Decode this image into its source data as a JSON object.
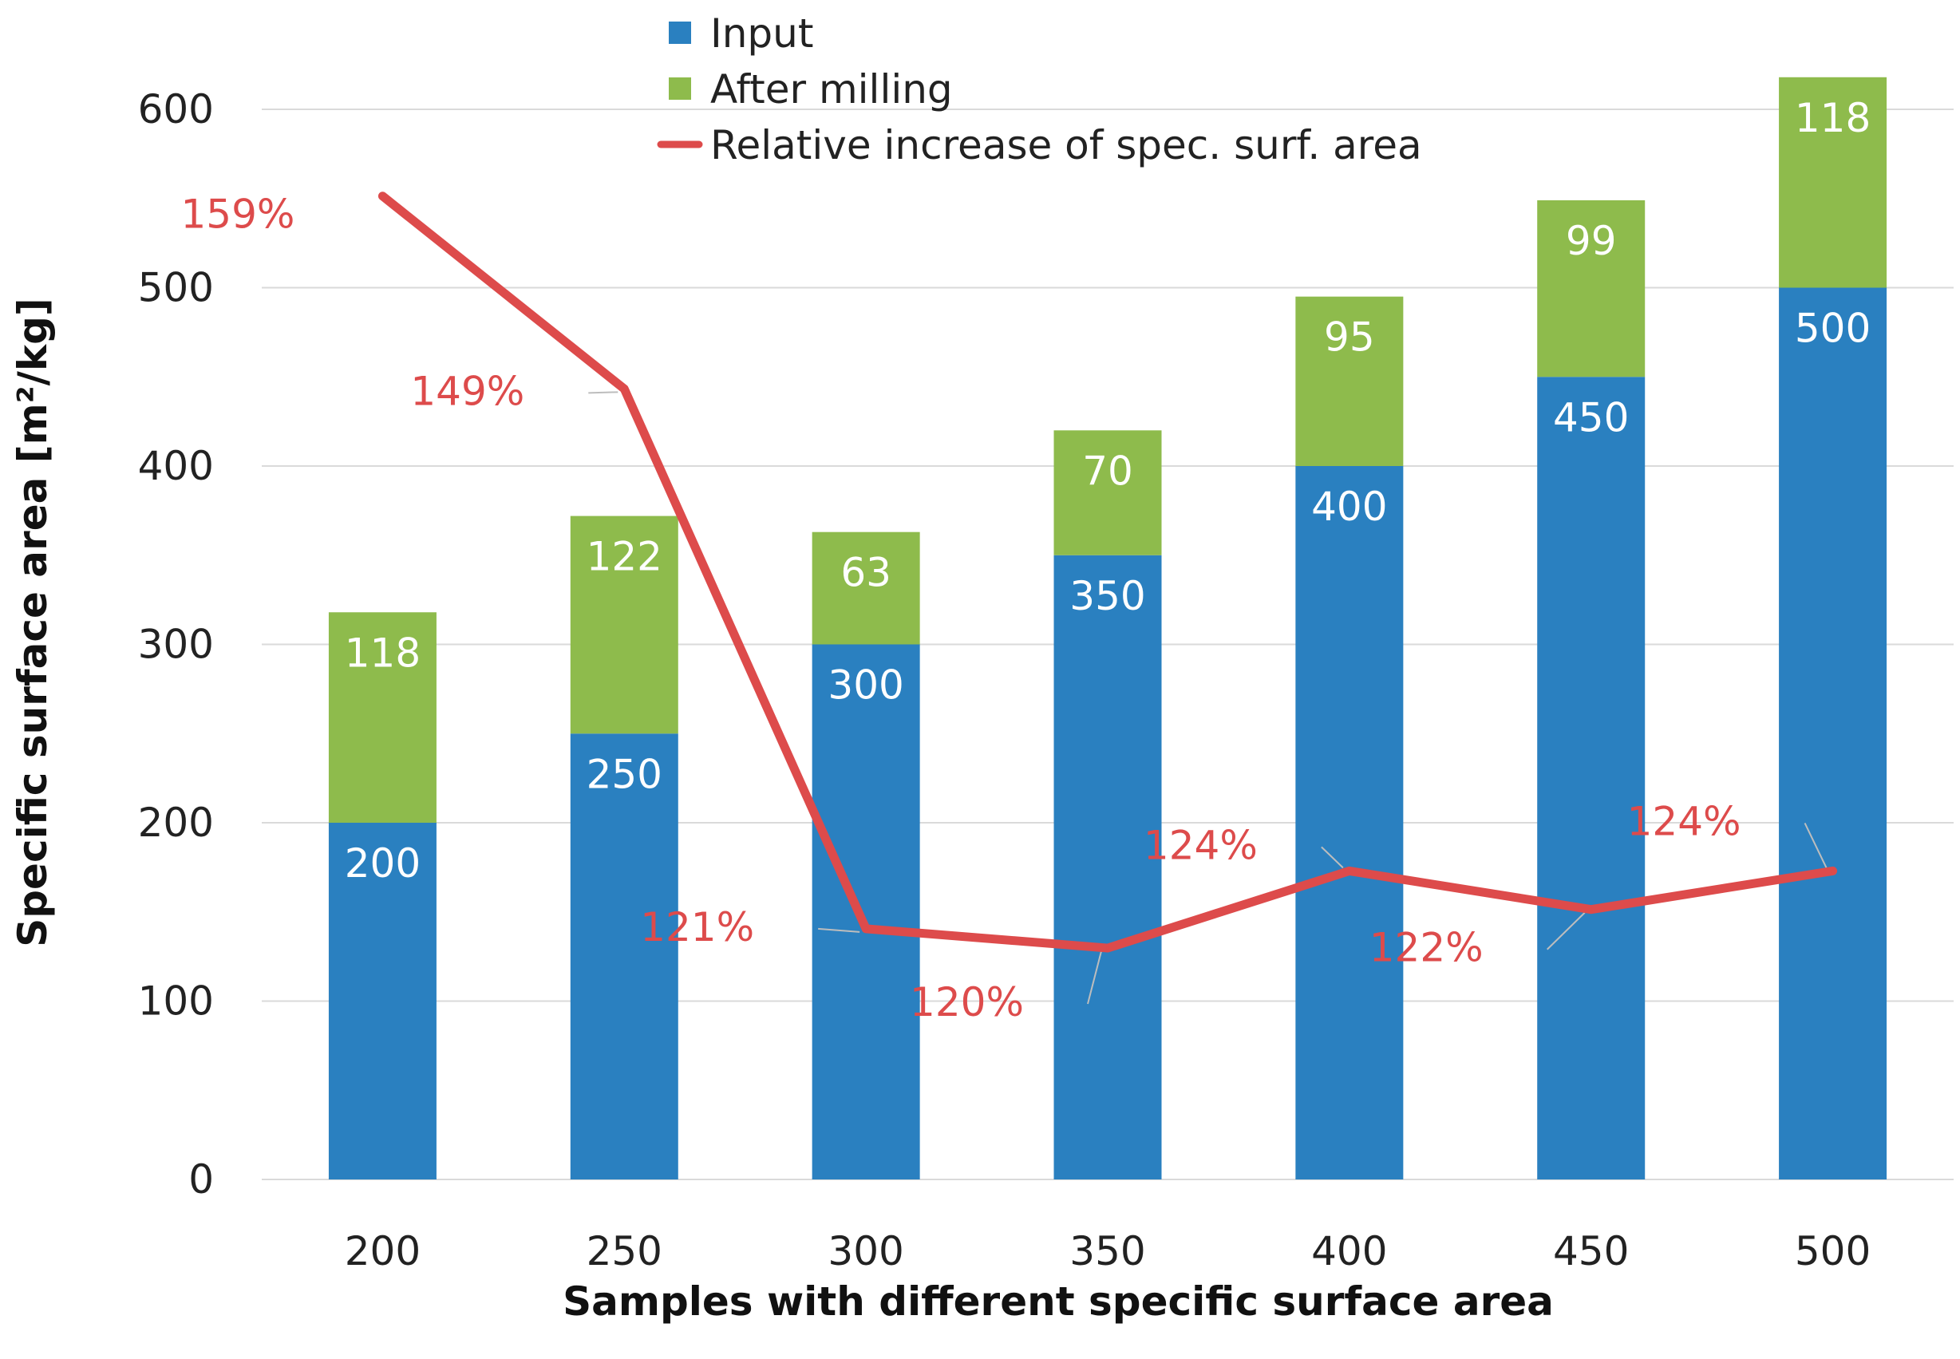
{
  "chart_data": {
    "type": "bar",
    "stacked": true,
    "title": "",
    "xlabel": "Samples with different specific surface area",
    "ylabel": "Specific surface area [m²/kg]",
    "ylim": [
      0,
      600
    ],
    "yticks": [
      0,
      100,
      200,
      300,
      400,
      500,
      600
    ],
    "grid": true,
    "legend_position": "top-center",
    "categories": [
      "200",
      "250",
      "300",
      "350",
      "400",
      "450",
      "500"
    ],
    "series": [
      {
        "name": "Input",
        "kind": "bar",
        "color": "#2A80C0",
        "values": [
          200,
          250,
          300,
          350,
          400,
          450,
          500
        ],
        "labels": [
          "200",
          "250",
          "300",
          "350",
          "400",
          "450",
          "500"
        ]
      },
      {
        "name": "After milling",
        "kind": "bar",
        "color": "#8EBB4C",
        "values": [
          118,
          122,
          63,
          70,
          95,
          99,
          118
        ],
        "labels": [
          "118",
          "122",
          "63",
          "70",
          "95",
          "99",
          "118"
        ]
      },
      {
        "name": "Relative increase of spec. surf. area",
        "kind": "line",
        "color": "#DD4B4B",
        "values": [
          159,
          149,
          121,
          120,
          124,
          122,
          124
        ],
        "unit": "%",
        "labels": [
          "159%",
          "149%",
          "121%",
          "120%",
          "124%",
          "122%",
          "124%"
        ]
      }
    ]
  }
}
